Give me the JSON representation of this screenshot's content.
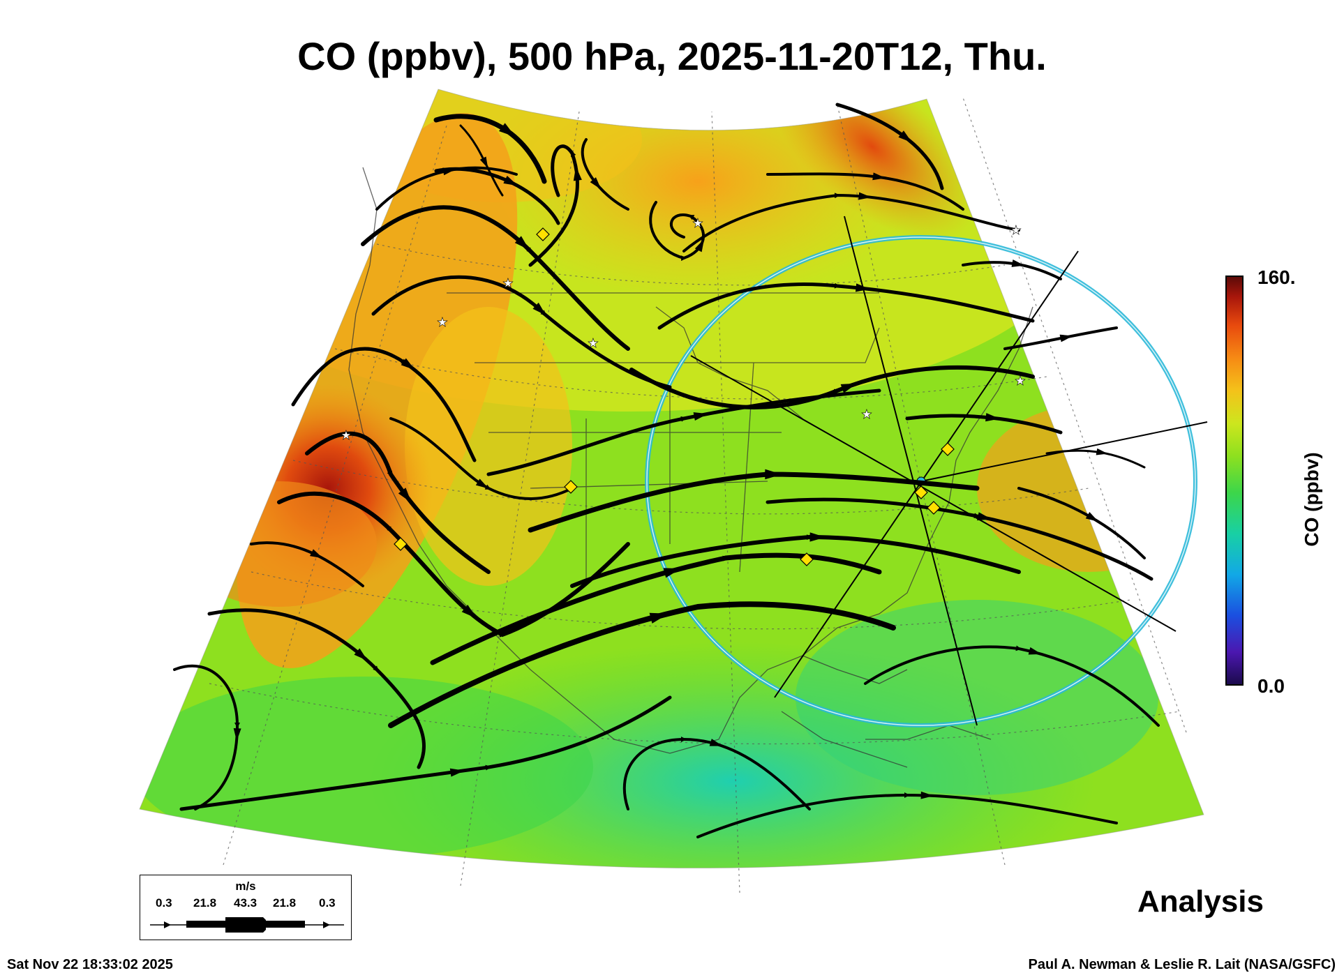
{
  "title": "CO (ppbv), 500 hPa, 2025-11-20T12, Thu.",
  "colorbar": {
    "max_label": "160.",
    "min_label": "0.0",
    "label": "CO (ppbv)",
    "colors": [
      "#1a0a4a",
      "#4b17b0",
      "#1b4fe0",
      "#12a8e6",
      "#18d0a4",
      "#3cd64a",
      "#8ee01f",
      "#cde61e",
      "#f4c21a",
      "#f68a14",
      "#e84a0e",
      "#a8160b",
      "#5a0a08"
    ]
  },
  "vector_legend": {
    "unit": "m/s",
    "values": [
      "0.3",
      "21.8",
      "43.3",
      "21.8",
      "0.3"
    ]
  },
  "status_label": "Analysis",
  "footer": {
    "timestamp": "Sat Nov 22 18:33:02 2025",
    "credit": "Paul A. Newman & Leslie R. Lait (NASA/GSFC)"
  },
  "map_colors": {
    "background_field": "#8ee01f",
    "high_co": "#f68a14",
    "plume": "#c8320c",
    "low_co": "#24d2a0",
    "ring": "#2ab8d8",
    "station": "#ffe000"
  },
  "icons": [
    "station-diamond-icon",
    "station-star-icon",
    "streamline-arrow-icon"
  ]
}
